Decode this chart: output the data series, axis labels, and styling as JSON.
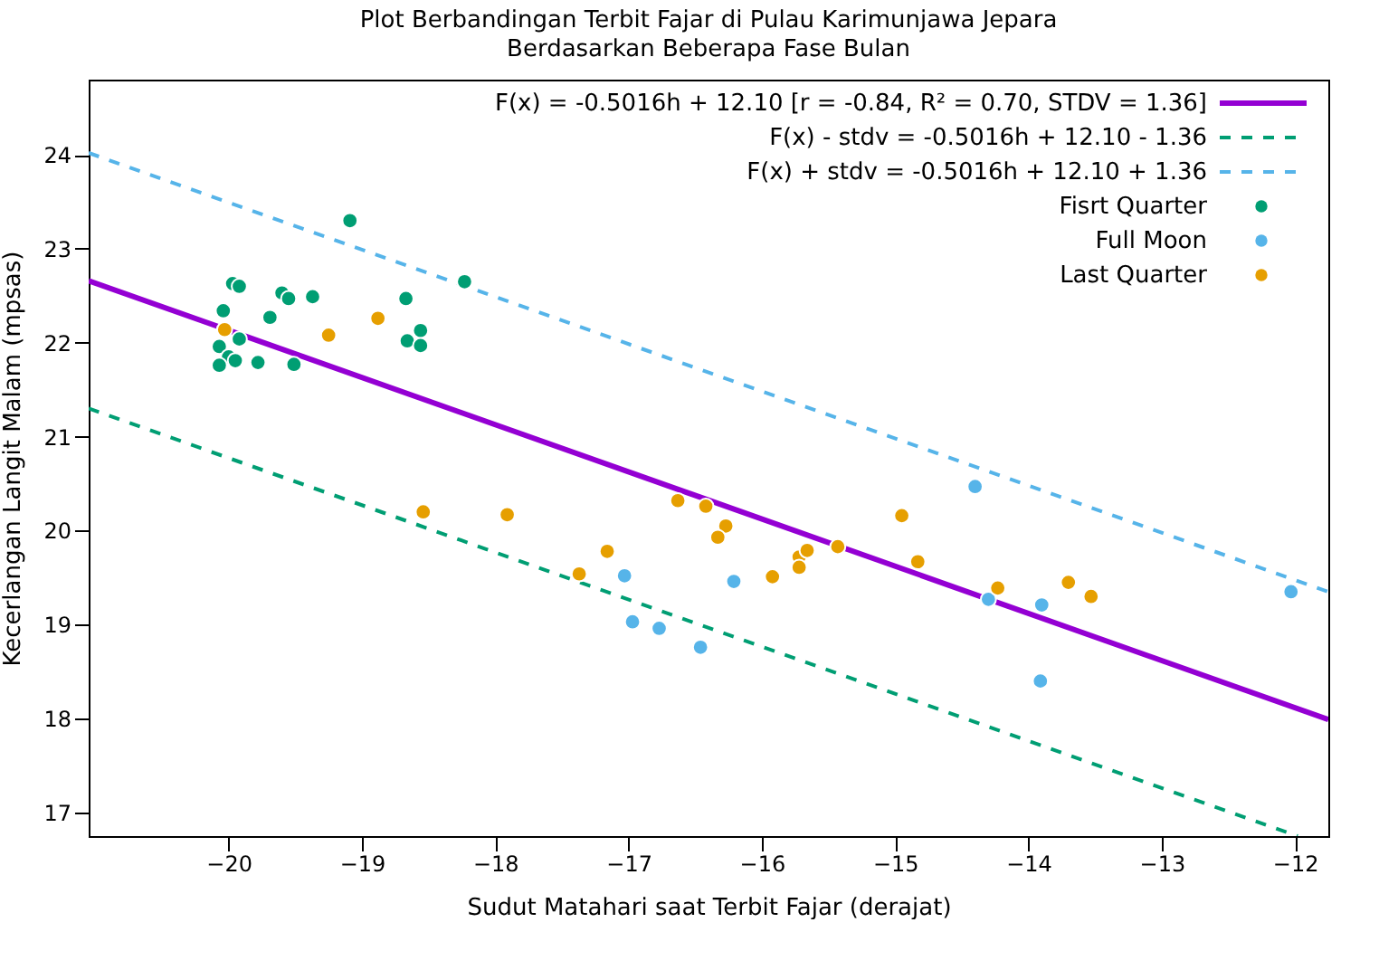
{
  "chart_data": {
    "type": "scatter",
    "title": "Plot Berbandingan Terbit Fajar di Pulau Karimunjawa Jepara",
    "subtitle": "Berdasarkan Beberapa Fase Bulan",
    "xlabel": "Sudut Matahari saat Terbit Fajar (derajat)",
    "ylabel": "Kecerlangan Langit Malam (mpsas)",
    "xlim": [
      -21.05,
      -11.75
    ],
    "xticks": [
      -20,
      -19,
      -18,
      -17,
      -16,
      -15,
      -14,
      -13,
      -12
    ],
    "ylim": [
      16.75,
      24.8
    ],
    "yticks": [
      17,
      18,
      19,
      20,
      21,
      22,
      23,
      24
    ],
    "grid": false,
    "legend": "top right",
    "series": [
      {
        "name": "F(x) = -0.5016h + 12.10 [r = -0.84, R² = 0.70, STDV = 1.36]",
        "type": "line",
        "line_style": "solid",
        "color": "#9400d3",
        "x": [
          -21.05,
          -11.75
        ],
        "values": [
          22.66,
          17.99
        ]
      },
      {
        "name": "F(x) - stdv = -0.5016h + 12.10 - 1.36",
        "type": "line",
        "line_style": "dashed",
        "color": "#009e73",
        "x": [
          -21.05,
          -11.98
        ],
        "values": [
          21.3,
          16.75
        ]
      },
      {
        "name": "F(x) + stdv = -0.5016h + 12.10 + 1.36",
        "type": "line",
        "line_style": "dashed",
        "color": "#56b4e9",
        "x": [
          -21.05,
          -11.75
        ],
        "values": [
          24.02,
          19.35
        ]
      },
      {
        "name": "Fisrt Quarter",
        "marker": "circle",
        "color": "#009e73",
        "x": [
          -19.09,
          -18.23,
          -19.97,
          -19.92,
          -19.6,
          -19.55,
          -19.37,
          -18.67,
          -20.04,
          -19.69,
          -18.56,
          -18.66,
          -18.56,
          -19.92,
          -20.07,
          -20.0,
          -19.95,
          -20.07,
          -19.78,
          -19.51
        ],
        "values": [
          23.3,
          22.65,
          22.63,
          22.6,
          22.53,
          22.47,
          22.49,
          22.47,
          22.34,
          22.27,
          22.13,
          22.02,
          21.97,
          22.04,
          21.96,
          21.85,
          21.81,
          21.76,
          21.79,
          21.77
        ]
      },
      {
        "name": "Full Moon",
        "marker": "circle",
        "color": "#56b4e9",
        "x": [
          -17.03,
          -16.21,
          -16.97,
          -16.77,
          -16.46,
          -14.4,
          -14.3,
          -13.9,
          -13.91,
          -12.03
        ],
        "values": [
          19.52,
          19.46,
          19.03,
          18.96,
          18.76,
          20.47,
          19.27,
          19.21,
          18.4,
          19.35
        ]
      },
      {
        "name": "Last Quarter",
        "marker": "circle",
        "color": "#e69f00",
        "x": [
          -20.03,
          -19.25,
          -18.88,
          -18.54,
          -17.91,
          -16.63,
          -16.42,
          -16.27,
          -16.33,
          -17.16,
          -17.37,
          -15.92,
          -15.72,
          -15.66,
          -15.72,
          -15.43,
          -14.95,
          -14.83,
          -14.23,
          -13.7,
          -13.53
        ],
        "values": [
          22.14,
          22.08,
          22.26,
          20.2,
          20.17,
          20.32,
          20.26,
          20.05,
          19.93,
          19.78,
          19.54,
          19.51,
          19.72,
          19.79,
          19.61,
          19.83,
          20.16,
          19.67,
          19.39,
          19.45,
          19.3
        ]
      }
    ]
  }
}
